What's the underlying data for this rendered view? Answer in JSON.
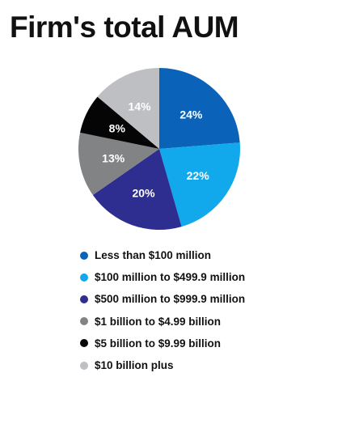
{
  "page": {
    "title": "Firm's total AUM"
  },
  "chart_data": {
    "type": "pie",
    "title": "Firm's total AUM",
    "start_angle_deg": 0,
    "direction": "clockwise",
    "legend_position": "bottom",
    "slices": [
      {
        "label": "Less than $100 million",
        "value": 24,
        "display": "24%",
        "color": "#0a63b8",
        "label_color": "#ffffff"
      },
      {
        "label": "$100 million to $499.9 million",
        "value": 22,
        "display": "22%",
        "color": "#12a9ec",
        "label_color": "#ffffff"
      },
      {
        "label": "$500 million to $999.9 million",
        "value": 20,
        "display": "20%",
        "color": "#2d2e8f",
        "label_color": "#ffffff"
      },
      {
        "label": "$1 billion to $4.99 billion",
        "value": 13,
        "display": "13%",
        "color": "#828385",
        "label_color": "#ffffff"
      },
      {
        "label": "$5 billion to $9.99 billion",
        "value": 8,
        "display": "8%",
        "color": "#050505",
        "label_color": "#ffffff"
      },
      {
        "label": "$10 billion plus",
        "value": 14,
        "display": "14%",
        "color": "#bebfc2",
        "label_color": "#ffffff"
      }
    ]
  }
}
